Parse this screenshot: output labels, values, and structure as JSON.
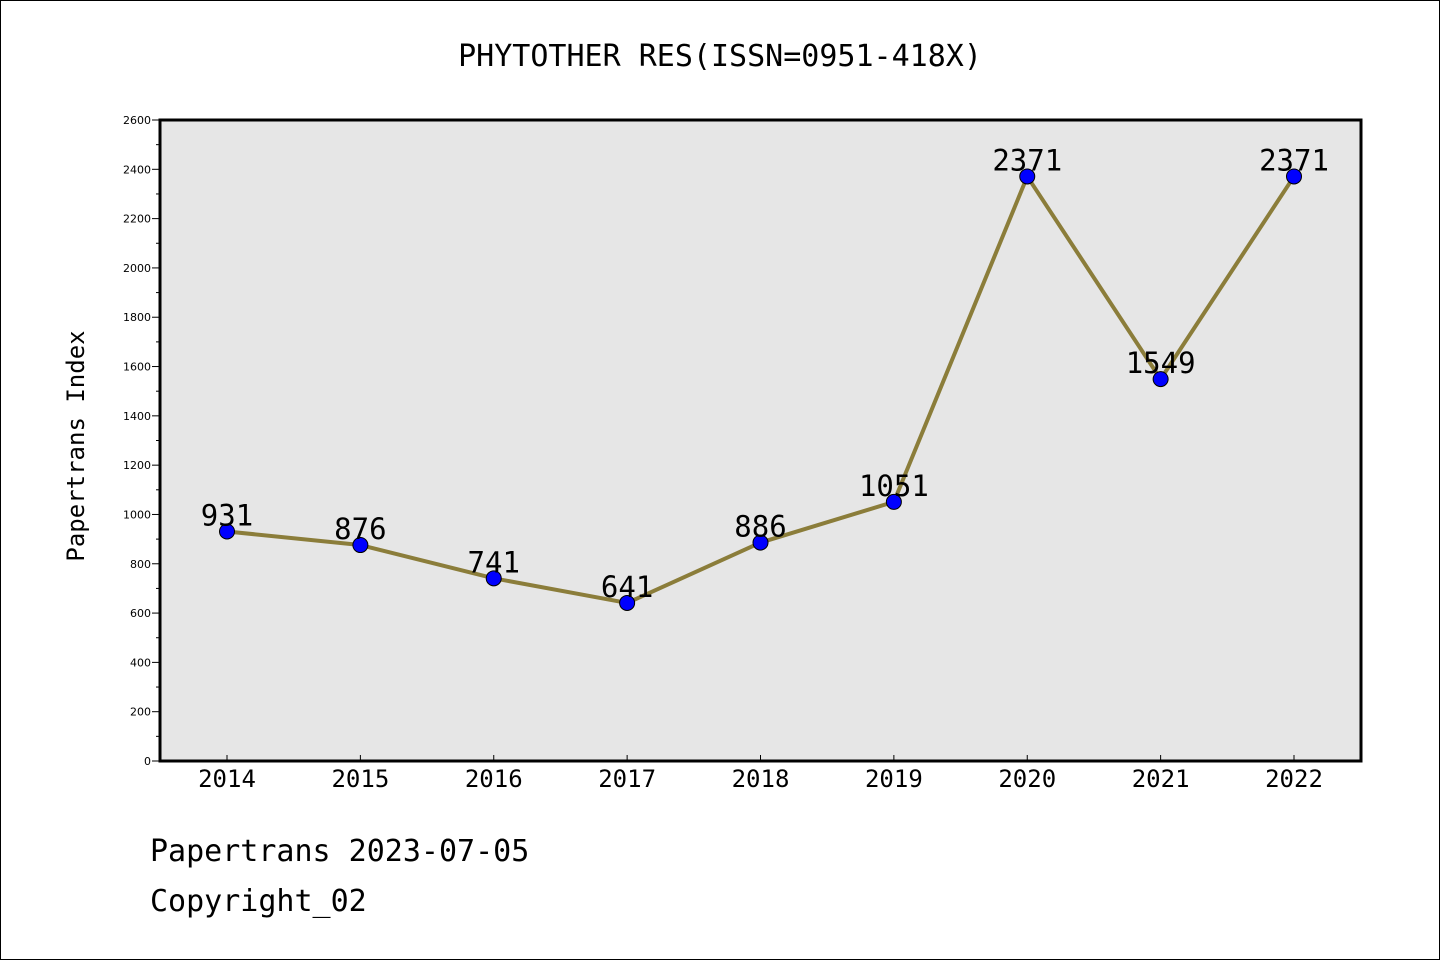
{
  "chart_data": {
    "type": "line",
    "title": "PHYTOTHER RES(ISSN=0951-418X)",
    "ylabel": "Papertrans Index",
    "xlabel": "",
    "categories": [
      "2014",
      "2015",
      "2016",
      "2017",
      "2018",
      "2019",
      "2020",
      "2021",
      "2022"
    ],
    "values": [
      931,
      876,
      741,
      641,
      886,
      1051,
      2371,
      1549,
      2371
    ],
    "data_labels": [
      "931",
      "876",
      "741",
      "641",
      "886",
      "1051",
      "2371",
      "1549",
      "2371"
    ],
    "ylim": [
      0,
      2600
    ],
    "yticks": [
      0,
      200,
      400,
      600,
      800,
      1000,
      1200,
      1400,
      1600,
      1800,
      2000,
      2200,
      2400,
      2600
    ],
    "grid": false,
    "colors": {
      "line": "#8B7D3A",
      "marker": "#0000FF",
      "plot_background": "#E6E6E6"
    }
  },
  "footer": {
    "line1": "Papertrans 2023-07-05",
    "line2": "Copyright_02"
  }
}
